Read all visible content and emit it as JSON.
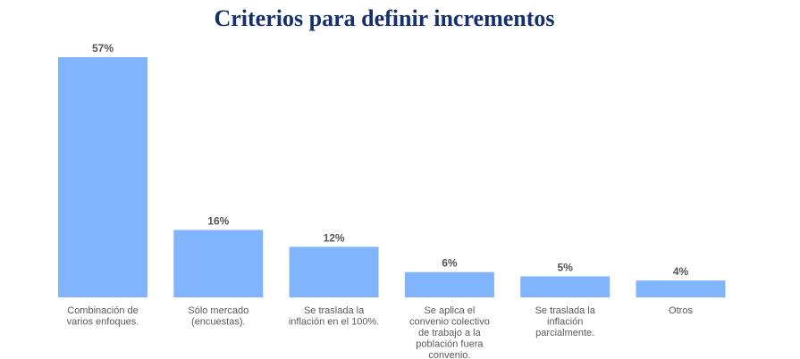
{
  "chart_data": {
    "type": "bar",
    "title": "Criterios para definir incrementos",
    "categories": [
      [
        "Combinación de",
        "varios enfoques."
      ],
      [
        "Sólo mercado",
        "(encuestas)."
      ],
      [
        "Se traslada la",
        "inflación en el 100%."
      ],
      [
        "Se aplica el",
        "convenio colectivo",
        "de trabajo a la",
        "población fuera",
        "convenio."
      ],
      [
        "Se traslada la",
        "inflación",
        "parcialmente."
      ],
      [
        "Otros"
      ]
    ],
    "values": [
      57,
      16,
      12,
      6,
      5,
      4
    ],
    "value_labels": [
      "57%",
      "16%",
      "12%",
      "6%",
      "5%",
      "4%"
    ],
    "xlabel": "",
    "ylabel": "",
    "ylim": [
      0,
      57
    ],
    "grid": false,
    "bar_color": "#80b5fd",
    "title_color": "#14306e"
  }
}
